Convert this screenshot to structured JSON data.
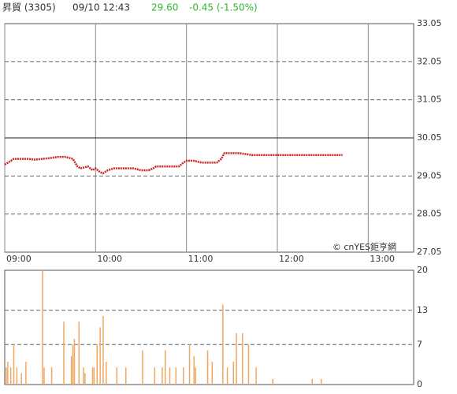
{
  "header": {
    "name": "昇貿 (3305)",
    "time": "09/10 12:43",
    "price": "29.60",
    "change": "-0.45 (-1.50%)"
  },
  "chart_data": [
    {
      "type": "line",
      "color": "#cc2222",
      "annotation": "© cnYES鉅亨網",
      "x": [
        0,
        3,
        6,
        10,
        15,
        20,
        25,
        30,
        35,
        40,
        45,
        48,
        50,
        55,
        58,
        60,
        63,
        65,
        68,
        72,
        75,
        80,
        85,
        90,
        95,
        98,
        100,
        105,
        110,
        115,
        118,
        120,
        125,
        130,
        135,
        140,
        143,
        145,
        150,
        155,
        160,
        163,
        170,
        180,
        190,
        200,
        210,
        223
      ],
      "values": [
        29.35,
        29.42,
        29.5,
        29.5,
        29.5,
        29.48,
        29.5,
        29.52,
        29.55,
        29.55,
        29.5,
        29.3,
        29.25,
        29.3,
        29.2,
        29.25,
        29.15,
        29.12,
        29.2,
        29.25,
        29.25,
        29.25,
        29.25,
        29.2,
        29.2,
        29.25,
        29.3,
        29.3,
        29.3,
        29.3,
        29.4,
        29.45,
        29.45,
        29.4,
        29.4,
        29.4,
        29.5,
        29.65,
        29.65,
        29.65,
        29.62,
        29.6,
        29.6,
        29.6,
        29.6,
        29.6,
        29.6,
        29.6
      ],
      "xlim": [
        0,
        270
      ],
      "xticks": [
        {
          "value": 0,
          "label": "09:00"
        },
        {
          "value": 60,
          "label": "10:00"
        },
        {
          "value": 120,
          "label": "11:00"
        },
        {
          "value": 180,
          "label": "12:00"
        },
        {
          "value": 240,
          "label": "13:00"
        }
      ],
      "ylim": [
        27.05,
        33.05
      ],
      "yticks": [
        27.05,
        28.05,
        29.05,
        30.05,
        31.05,
        32.05,
        33.05
      ],
      "reference": 30.05,
      "grid": true
    },
    {
      "type": "bar",
      "color": "#f0a860",
      "x": [
        1,
        2,
        4,
        6,
        8,
        11,
        14,
        25,
        26,
        31,
        39,
        44,
        45,
        46,
        49,
        52,
        53,
        58,
        59,
        61,
        63,
        65,
        67,
        74,
        80,
        91,
        99,
        104,
        106,
        109,
        113,
        118,
        122,
        125,
        126,
        134,
        137,
        144,
        147,
        151,
        153,
        157,
        161,
        166,
        177,
        203,
        209
      ],
      "values": [
        3,
        4,
        3,
        7,
        3,
        2,
        4,
        20,
        3,
        3,
        11,
        5,
        7,
        8,
        11,
        3,
        2,
        3,
        3,
        7,
        10,
        12,
        4,
        3,
        3,
        6,
        3,
        3,
        6,
        3,
        3,
        3,
        7,
        5,
        3,
        6,
        4,
        14,
        3,
        4,
        9,
        9,
        7,
        3,
        1,
        1,
        1
      ],
      "xlim": [
        0,
        270
      ],
      "ylim": [
        0,
        20
      ],
      "yticks": [
        0,
        7,
        13,
        20
      ],
      "grid": true
    }
  ]
}
